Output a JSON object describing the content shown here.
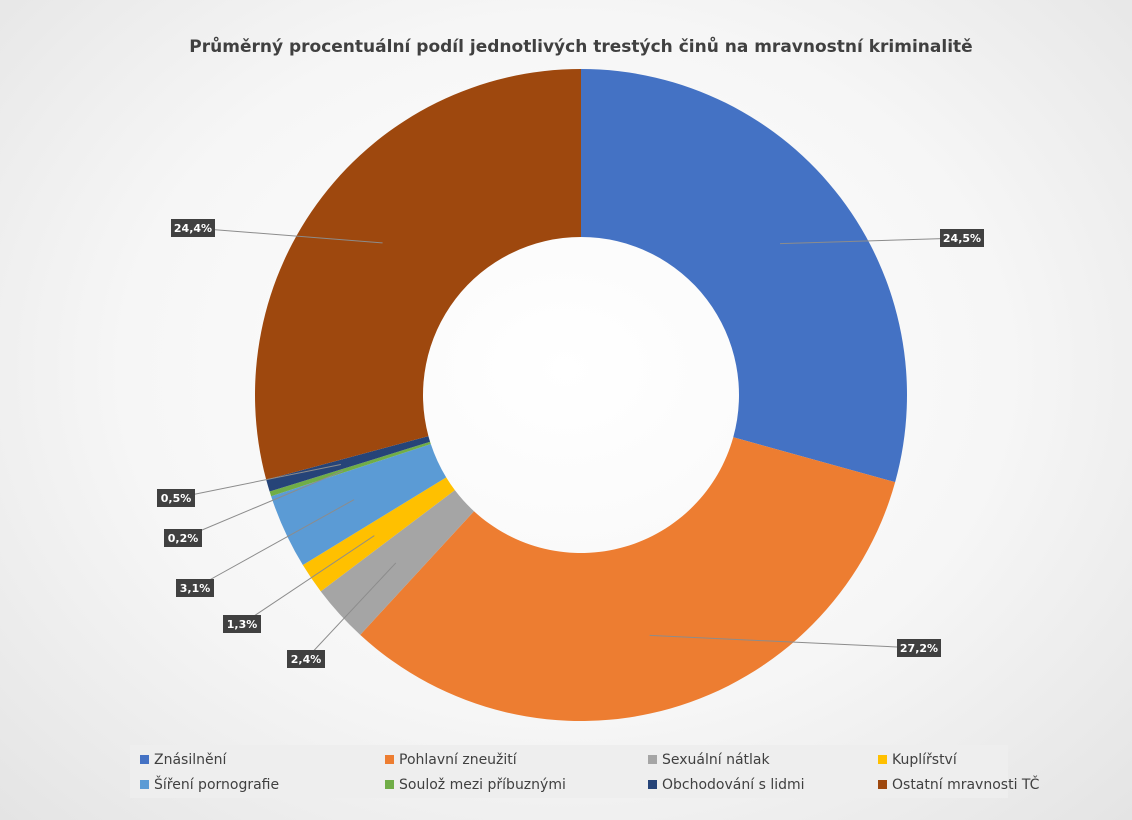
{
  "chart_data": {
    "type": "pie",
    "variant": "doughnut",
    "title": "Průměrný procentuální podíl jednotlivých trestých činů na mravnostní kriminalitě",
    "series": [
      {
        "name": "Znásilnění",
        "value": 24.5,
        "label": "24,5%",
        "color": "#4472C4"
      },
      {
        "name": "Pohlavní zneužití",
        "value": 27.2,
        "label": "27,2%",
        "color": "#ED7D31"
      },
      {
        "name": "Sexuální nátlak",
        "value": 2.4,
        "label": "2,4%",
        "color": "#A5A5A5"
      },
      {
        "name": "Kuplířství",
        "value": 1.3,
        "label": "1,3%",
        "color": "#FFC000"
      },
      {
        "name": "Šíření pornografie",
        "value": 3.1,
        "label": "3,1%",
        "color": "#5B9BD5"
      },
      {
        "name": "Soulož mezi příbuznými",
        "value": 0.2,
        "label": "0,2%",
        "color": "#70AD47"
      },
      {
        "name": "Obchodování s lidmi",
        "value": 0.5,
        "label": "0,5%",
        "color": "#264478"
      },
      {
        "name": "Ostatní mravnosti TČ",
        "value": 24.4,
        "label": "24,4%",
        "color": "#9E480E"
      }
    ],
    "legend_position": "bottom",
    "data_label_style": "dark callout with leader lines"
  }
}
